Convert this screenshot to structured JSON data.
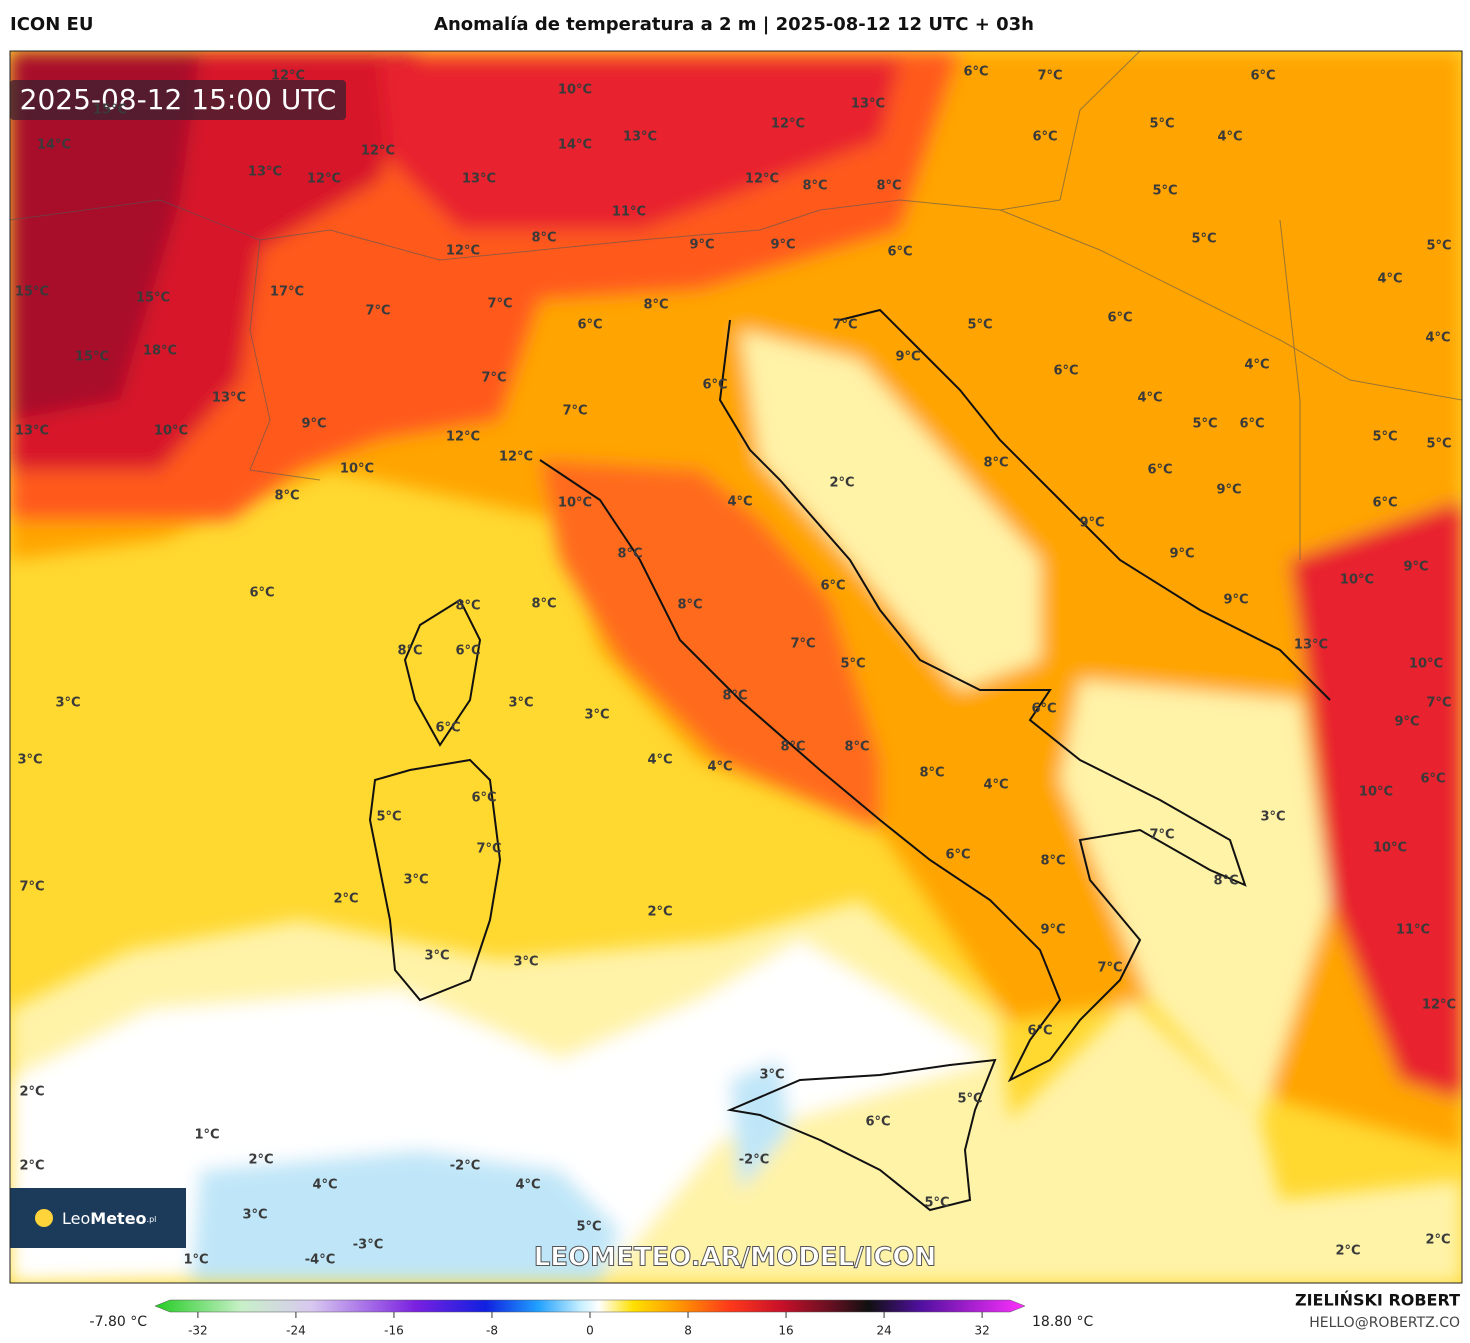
{
  "header": {
    "model": "ICON EU",
    "title": "Anomalía de temperatura a 2 m | 2025-08-12 12 UTC + 03h"
  },
  "timestamp": "2025-08-12 15:00 UTC",
  "watermark": "LEOMETEO.AR/MODEL/ICON",
  "logo": {
    "light": "Leo",
    "bold": "Meteo",
    "suffix": ".pl"
  },
  "credit": {
    "name": "ZIELIŃSKI ROBERT",
    "email": "HELLO@ROBERTZ.CO"
  },
  "colorbar": {
    "min_label": "-7.80 °C",
    "max_label": "18.80 °C",
    "range": [
      -35.5,
      35.5
    ],
    "ticks": [
      -32,
      -24,
      -16,
      -8,
      0,
      8,
      16,
      24,
      32
    ]
  },
  "map_labels": [
    "12°C",
    "10°C",
    "13°C",
    "6°C",
    "7°C",
    "6°C",
    "15°C",
    "14°C",
    "14°C",
    "13°C",
    "12°C",
    "6°C",
    "5°C",
    "4°C",
    "13°C",
    "12°C",
    "12°C",
    "13°C",
    "12°C",
    "8°C",
    "8°C",
    "5°C",
    "11°C",
    "12°C",
    "8°C",
    "9°C",
    "9°C",
    "6°C",
    "5°C",
    "5°C",
    "15°C",
    "15°C",
    "17°C",
    "7°C",
    "7°C",
    "8°C",
    "6°C",
    "7°C",
    "5°C",
    "6°C",
    "4°C",
    "4°C",
    "15°C",
    "18°C",
    "13°C",
    "7°C",
    "9°C",
    "6°C",
    "6°C",
    "4°C",
    "4°C",
    "13°C",
    "10°C",
    "9°C",
    "12°C",
    "7°C",
    "5°C",
    "6°C",
    "5°C",
    "5°C",
    "10°C",
    "12°C",
    "8°C",
    "6°C",
    "2°C",
    "8°C",
    "10°C",
    "4°C",
    "9°C",
    "6°C",
    "9°C",
    "6°C",
    "8°C",
    "9°C",
    "8°C",
    "8°C",
    "6°C",
    "8°C",
    "10°C",
    "9°C",
    "9°C",
    "8°C",
    "6°C",
    "7°C",
    "5°C",
    "13°C",
    "10°C",
    "3°C",
    "3°C",
    "3°C",
    "8°C",
    "6°C",
    "7°C",
    "6°C",
    "9°C",
    "3°C",
    "4°C",
    "4°C",
    "8°C",
    "8°C",
    "8°C",
    "4°C",
    "6°C",
    "6°C",
    "5°C",
    "3°C",
    "7°C",
    "10°C",
    "7°C",
    "6°C",
    "8°C",
    "10°C",
    "3°C",
    "7°C",
    "8°C",
    "2°C",
    "2°C",
    "9°C",
    "11°C",
    "3°C",
    "3°C",
    "7°C",
    "12°C",
    "6°C",
    "3°C",
    "2°C",
    "5°C",
    "6°C",
    "1°C",
    "2°C",
    "2°C",
    "-2°C",
    "-2°C",
    "4°C",
    "4°C",
    "3°C",
    "5°C",
    "5°C",
    "-3°C",
    "1°C",
    "-4°C",
    "2°C",
    "2°C"
  ]
}
